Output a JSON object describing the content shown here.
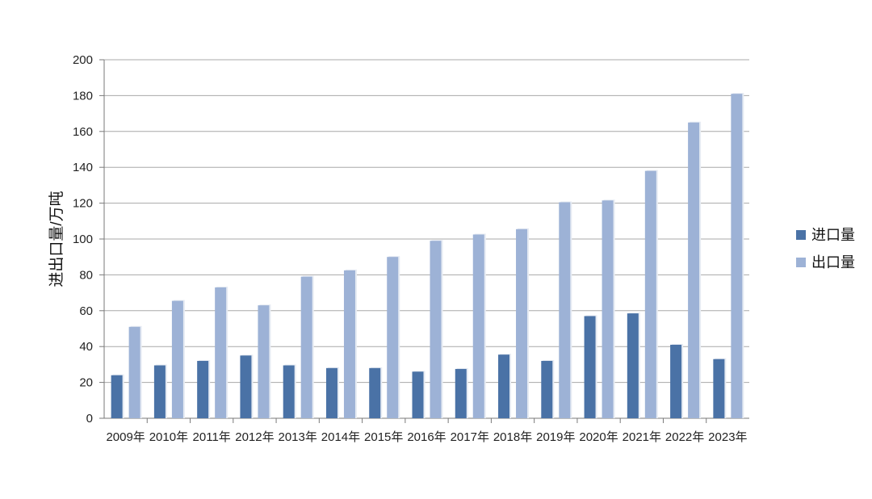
{
  "chart_data": {
    "type": "bar",
    "title": "",
    "xlabel": "",
    "ylabel": "进出口量/万吨",
    "ylim": [
      0,
      200
    ],
    "yticks": [
      0,
      20,
      40,
      60,
      80,
      100,
      120,
      140,
      160,
      180,
      200
    ],
    "grid": true,
    "legend_position": "right",
    "categories": [
      "2009年",
      "2010年",
      "2011年",
      "2012年",
      "2013年",
      "2014年",
      "2015年",
      "2016年",
      "2017年",
      "2018年",
      "2019年",
      "2020年",
      "2021年",
      "2022年",
      "2023年"
    ],
    "series": [
      {
        "name": "进口量",
        "color": "#4a72a6",
        "values": [
          24,
          29.5,
          32,
          35,
          29.5,
          28,
          28,
          26,
          27.5,
          35.5,
          32,
          57,
          58.5,
          41,
          33
        ]
      },
      {
        "name": "出口量",
        "color": "#9db2d6",
        "values": [
          51,
          65.5,
          73,
          63,
          79,
          82.5,
          90,
          99,
          102.5,
          105.5,
          120.5,
          121.5,
          138,
          165,
          181
        ]
      }
    ]
  }
}
